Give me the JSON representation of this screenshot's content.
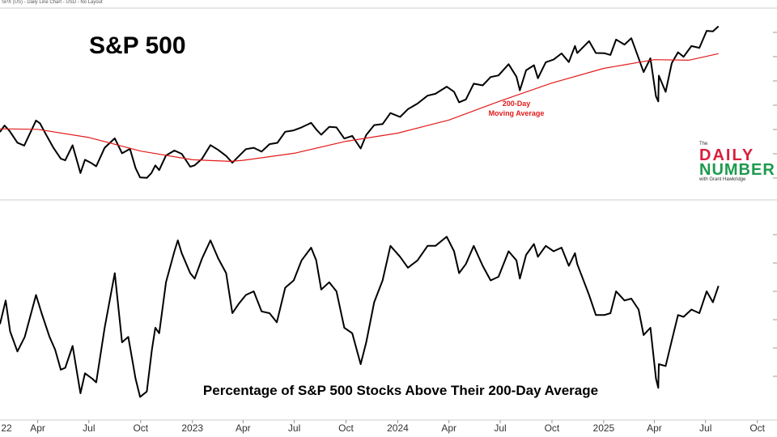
{
  "header": {
    "text": "SPX (US) - Daily Line Chart - USD - No Layout"
  },
  "logo": {
    "the": "The",
    "daily": "DAILY",
    "number": "NUMBER",
    "with": "with Grant Hawkridge"
  },
  "colors": {
    "price": "#000000",
    "moving_average": "#e21a1a",
    "grid": "#dddddd",
    "logo_red": "#d81f3c",
    "logo_green": "#1d9a4e"
  },
  "chart_data": [
    {
      "type": "line",
      "title": "S&P 500",
      "x_axis": {
        "type": "date",
        "range": [
          "2022-01-24",
          "2025-11-05"
        ],
        "tick_labels": [
          {
            "date": "2022-01-03",
            "label": "22"
          },
          {
            "date": "2022-04-01",
            "label": "Apr"
          },
          {
            "date": "2022-07-01",
            "label": "Jul"
          },
          {
            "date": "2022-10-01",
            "label": "Oct"
          },
          {
            "date": "2023-01-01",
            "label": "2023"
          },
          {
            "date": "2023-04-01",
            "label": "Apr"
          },
          {
            "date": "2023-07-01",
            "label": "Jul"
          },
          {
            "date": "2023-10-01",
            "label": "Oct"
          },
          {
            "date": "2024-01-01",
            "label": "2024"
          },
          {
            "date": "2024-04-01",
            "label": "Apr"
          },
          {
            "date": "2024-07-01",
            "label": "Jul"
          },
          {
            "date": "2024-10-01",
            "label": "Oct"
          },
          {
            "date": "2025-01-01",
            "label": "2025"
          },
          {
            "date": "2025-04-01",
            "label": "Apr"
          },
          {
            "date": "2025-07-01",
            "label": "Jul"
          },
          {
            "date": "2025-10-01",
            "label": "Oct"
          }
        ]
      },
      "ylim": [
        3500,
        6400
      ],
      "annotation": [
        "200-Day",
        "Moving Average"
      ],
      "series": [
        {
          "role": "price",
          "points": [
            [
              "2022-01-24",
              4420
            ],
            [
              "2022-02-01",
              4540
            ],
            [
              "2022-02-10",
              4440
            ],
            [
              "2022-02-24",
              4225
            ],
            [
              "2022-03-08",
              4170
            ],
            [
              "2022-03-29",
              4631
            ],
            [
              "2022-04-05",
              4580
            ],
            [
              "2022-04-15",
              4390
            ],
            [
              "2022-04-29",
              4130
            ],
            [
              "2022-05-12",
              3930
            ],
            [
              "2022-05-20",
              3900
            ],
            [
              "2022-06-02",
              4176
            ],
            [
              "2022-06-16",
              3666
            ],
            [
              "2022-06-24",
              3911
            ],
            [
              "2022-07-06",
              3845
            ],
            [
              "2022-07-14",
              3790
            ],
            [
              "2022-07-29",
              4130
            ],
            [
              "2022-08-16",
              4305
            ],
            [
              "2022-08-29",
              4030
            ],
            [
              "2022-09-12",
              4110
            ],
            [
              "2022-09-22",
              3757
            ],
            [
              "2022-09-30",
              3585
            ],
            [
              "2022-10-12",
              3577
            ],
            [
              "2022-10-20",
              3665
            ],
            [
              "2022-10-27",
              3807
            ],
            [
              "2022-11-03",
              3720
            ],
            [
              "2022-11-15",
              3990
            ],
            [
              "2022-11-30",
              4080
            ],
            [
              "2022-12-13",
              4019
            ],
            [
              "2022-12-28",
              3783
            ],
            [
              "2023-01-05",
              3808
            ],
            [
              "2023-01-18",
              3928
            ],
            [
              "2023-02-02",
              4179
            ],
            [
              "2023-02-16",
              4090
            ],
            [
              "2023-03-02",
              3981
            ],
            [
              "2023-03-13",
              3855
            ],
            [
              "2023-03-24",
              3971
            ],
            [
              "2023-04-06",
              4105
            ],
            [
              "2023-04-20",
              4130
            ],
            [
              "2023-05-04",
              4061
            ],
            [
              "2023-05-18",
              4198
            ],
            [
              "2023-06-01",
              4221
            ],
            [
              "2023-06-15",
              4425
            ],
            [
              "2023-06-30",
              4450
            ],
            [
              "2023-07-14",
              4505
            ],
            [
              "2023-07-31",
              4588
            ],
            [
              "2023-08-09",
              4468
            ],
            [
              "2023-08-18",
              4370
            ],
            [
              "2023-09-01",
              4515
            ],
            [
              "2023-09-14",
              4505
            ],
            [
              "2023-09-28",
              4300
            ],
            [
              "2023-10-12",
              4349
            ],
            [
              "2023-10-27",
              4117
            ],
            [
              "2023-11-06",
              4365
            ],
            [
              "2023-11-20",
              4547
            ],
            [
              "2023-12-05",
              4567
            ],
            [
              "2023-12-19",
              4768
            ],
            [
              "2024-01-05",
              4697
            ],
            [
              "2024-01-19",
              4840
            ],
            [
              "2024-02-05",
              4942
            ],
            [
              "2024-02-23",
              5088
            ],
            [
              "2024-03-08",
              5123
            ],
            [
              "2024-03-28",
              5254
            ],
            [
              "2024-04-10",
              5160
            ],
            [
              "2024-04-19",
              4967
            ],
            [
              "2024-05-01",
              5018
            ],
            [
              "2024-05-15",
              5308
            ],
            [
              "2024-05-31",
              5277
            ],
            [
              "2024-06-14",
              5431
            ],
            [
              "2024-06-28",
              5460
            ],
            [
              "2024-07-16",
              5667
            ],
            [
              "2024-07-30",
              5436
            ],
            [
              "2024-08-05",
              5186
            ],
            [
              "2024-08-16",
              5554
            ],
            [
              "2024-08-30",
              5648
            ],
            [
              "2024-09-06",
              5408
            ],
            [
              "2024-09-20",
              5702
            ],
            [
              "2024-10-04",
              5751
            ],
            [
              "2024-10-18",
              5864
            ],
            [
              "2024-10-31",
              5705
            ],
            [
              "2024-11-11",
              6001
            ],
            [
              "2024-11-15",
              5870
            ],
            [
              "2024-12-06",
              6090
            ],
            [
              "2024-12-18",
              5872
            ],
            [
              "2025-01-02",
              5869
            ],
            [
              "2025-01-13",
              5836
            ],
            [
              "2025-01-23",
              6119
            ],
            [
              "2025-02-07",
              6026
            ],
            [
              "2025-02-19",
              6144
            ],
            [
              "2025-03-04",
              5778
            ],
            [
              "2025-03-13",
              5521
            ],
            [
              "2025-03-25",
              5776
            ],
            [
              "2025-04-04",
              5074
            ],
            [
              "2025-04-08",
              4982
            ],
            [
              "2025-04-09",
              5456
            ],
            [
              "2025-04-21",
              5158
            ],
            [
              "2025-05-02",
              5686
            ],
            [
              "2025-05-13",
              5886
            ],
            [
              "2025-05-23",
              5802
            ],
            [
              "2025-06-06",
              6000
            ],
            [
              "2025-06-20",
              5967
            ],
            [
              "2025-07-03",
              6279
            ],
            [
              "2025-07-14",
              6269
            ],
            [
              "2025-07-24",
              6363
            ]
          ]
        },
        {
          "role": "moving_average",
          "points": [
            [
              "2022-01-24",
              4478
            ],
            [
              "2022-04-01",
              4470
            ],
            [
              "2022-07-01",
              4320
            ],
            [
              "2022-10-01",
              4070
            ],
            [
              "2023-01-01",
              3910
            ],
            [
              "2023-03-10",
              3880
            ],
            [
              "2023-04-01",
              3900
            ],
            [
              "2023-07-01",
              4030
            ],
            [
              "2023-10-01",
              4250
            ],
            [
              "2024-01-01",
              4400
            ],
            [
              "2024-04-01",
              4640
            ],
            [
              "2024-07-01",
              4990
            ],
            [
              "2024-10-01",
              5320
            ],
            [
              "2025-01-01",
              5590
            ],
            [
              "2025-04-01",
              5750
            ],
            [
              "2025-06-01",
              5740
            ],
            [
              "2025-07-24",
              5860
            ]
          ]
        }
      ]
    },
    {
      "type": "line",
      "title": "Percentage of S&P 500 Stocks Above Their 200-Day Average",
      "x_axis": {
        "type": "date",
        "range": [
          "2022-01-24",
          "2025-11-05"
        ]
      },
      "ylim": [
        0,
        100
      ],
      "series": [
        {
          "role": "breadth",
          "points": [
            [
              "2022-01-24",
              42
            ],
            [
              "2022-02-03",
              55
            ],
            [
              "2022-02-11",
              38
            ],
            [
              "2022-02-24",
              27
            ],
            [
              "2022-03-09",
              35
            ],
            [
              "2022-03-29",
              58
            ],
            [
              "2022-04-08",
              48
            ],
            [
              "2022-04-22",
              35
            ],
            [
              "2022-05-02",
              28
            ],
            [
              "2022-05-12",
              17
            ],
            [
              "2022-05-20",
              18
            ],
            [
              "2022-06-02",
              30
            ],
            [
              "2022-06-16",
              4
            ],
            [
              "2022-06-24",
              15
            ],
            [
              "2022-07-07",
              12
            ],
            [
              "2022-07-14",
              10
            ],
            [
              "2022-07-29",
              40
            ],
            [
              "2022-08-16",
              70
            ],
            [
              "2022-08-29",
              32
            ],
            [
              "2022-09-09",
              35
            ],
            [
              "2022-09-22",
              12
            ],
            [
              "2022-09-30",
              2
            ],
            [
              "2022-10-12",
              5
            ],
            [
              "2022-10-21",
              28
            ],
            [
              "2022-10-27",
              40
            ],
            [
              "2022-11-03",
              37
            ],
            [
              "2022-11-15",
              65
            ],
            [
              "2022-11-30",
              82
            ],
            [
              "2022-12-06",
              88
            ],
            [
              "2022-12-13",
              81
            ],
            [
              "2022-12-28",
              70
            ],
            [
              "2023-01-05",
              67
            ],
            [
              "2023-01-18",
              78
            ],
            [
              "2023-02-02",
              88
            ],
            [
              "2023-02-16",
              78
            ],
            [
              "2023-03-02",
              70
            ],
            [
              "2023-03-13",
              48
            ],
            [
              "2023-03-24",
              53
            ],
            [
              "2023-04-06",
              58
            ],
            [
              "2023-04-20",
              60
            ],
            [
              "2023-05-04",
              49
            ],
            [
              "2023-05-18",
              48
            ],
            [
              "2023-05-31",
              43
            ],
            [
              "2023-06-15",
              62
            ],
            [
              "2023-06-30",
              66
            ],
            [
              "2023-07-14",
              77
            ],
            [
              "2023-07-31",
              84
            ],
            [
              "2023-08-09",
              77
            ],
            [
              "2023-08-18",
              61
            ],
            [
              "2023-09-01",
              65
            ],
            [
              "2023-09-14",
              60
            ],
            [
              "2023-09-28",
              40
            ],
            [
              "2023-10-12",
              37
            ],
            [
              "2023-10-27",
              20
            ],
            [
              "2023-11-06",
              32
            ],
            [
              "2023-11-20",
              54
            ],
            [
              "2023-12-05",
              66
            ],
            [
              "2023-12-19",
              85
            ],
            [
              "2024-01-05",
              79
            ],
            [
              "2024-01-19",
              73
            ],
            [
              "2024-02-05",
              77
            ],
            [
              "2024-02-23",
              85
            ],
            [
              "2024-03-08",
              85
            ],
            [
              "2024-03-28",
              90
            ],
            [
              "2024-04-10",
              82
            ],
            [
              "2024-04-19",
              70
            ],
            [
              "2024-05-01",
              75
            ],
            [
              "2024-05-15",
              85
            ],
            [
              "2024-05-31",
              74
            ],
            [
              "2024-06-14",
              66
            ],
            [
              "2024-06-28",
              68
            ],
            [
              "2024-07-16",
              82
            ],
            [
              "2024-07-30",
              77
            ],
            [
              "2024-08-05",
              67
            ],
            [
              "2024-08-16",
              80
            ],
            [
              "2024-08-30",
              86
            ],
            [
              "2024-09-06",
              79
            ],
            [
              "2024-09-20",
              85
            ],
            [
              "2024-10-04",
              82
            ],
            [
              "2024-10-18",
              84
            ],
            [
              "2024-10-31",
              74
            ],
            [
              "2024-11-11",
              81
            ],
            [
              "2024-11-15",
              75
            ],
            [
              "2024-12-06",
              58
            ],
            [
              "2024-12-18",
              47
            ],
            [
              "2025-01-02",
              47
            ],
            [
              "2025-01-13",
              48
            ],
            [
              "2025-01-23",
              60
            ],
            [
              "2025-02-07",
              55
            ],
            [
              "2025-02-19",
              56
            ],
            [
              "2025-03-04",
              50
            ],
            [
              "2025-03-13",
              36
            ],
            [
              "2025-03-25",
              40
            ],
            [
              "2025-04-04",
              12
            ],
            [
              "2025-04-08",
              7
            ],
            [
              "2025-04-09",
              20
            ],
            [
              "2025-04-21",
              19
            ],
            [
              "2025-05-02",
              33
            ],
            [
              "2025-05-13",
              47
            ],
            [
              "2025-05-23",
              46
            ],
            [
              "2025-06-06",
              50
            ],
            [
              "2025-06-20",
              48
            ],
            [
              "2025-07-03",
              60
            ],
            [
              "2025-07-14",
              54
            ],
            [
              "2025-07-24",
              63
            ]
          ]
        }
      ]
    }
  ]
}
